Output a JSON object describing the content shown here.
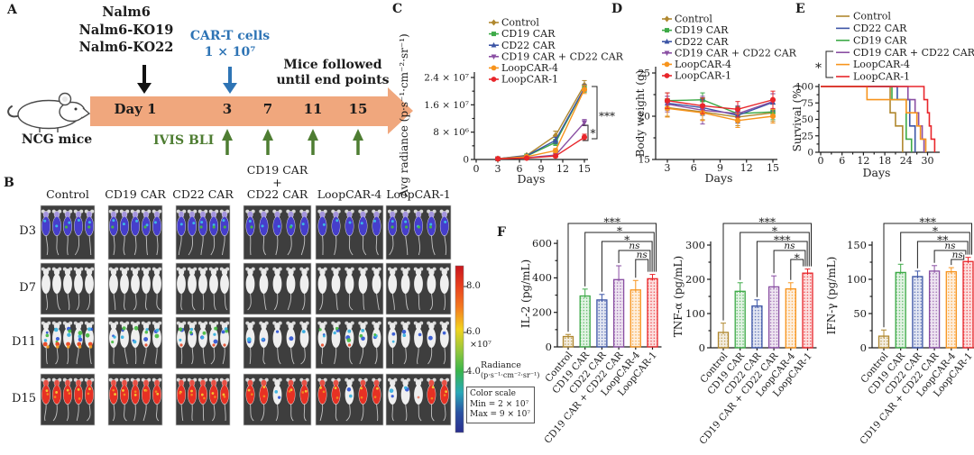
{
  "colors": {
    "control": "#b0882f",
    "cd19": "#3daa47",
    "cd22": "#3b54a5",
    "combo": "#8a4fa3",
    "loop4": "#f7941d",
    "loop1": "#e8262b",
    "timeline_arrow": "#f0a77d",
    "cart_text": "#2e74b5",
    "ivis_green": "#4e7d32",
    "mouse_panel_bg": "#3e3e3e"
  },
  "panelA": {
    "label": "A",
    "tumor_lines": [
      "Nalm6",
      "Nalm6-KO19",
      "Nalm6-KO22"
    ],
    "cart_line1": "CAR-T cells",
    "cart_line2": "1 × 10⁷",
    "followed_line1": "Mice followed",
    "followed_line2": "until end points",
    "day1": "Day 1",
    "day_ticks": [
      "3",
      "7",
      "11",
      "15"
    ],
    "ncg": "NCG mice",
    "ivis": "IVIS BLI"
  },
  "panelB": {
    "label": "B",
    "row_labels": [
      "D3",
      "D7",
      "D11",
      "D15"
    ],
    "col_headers": [
      [
        "Control"
      ],
      [
        "CD19 CAR"
      ],
      [
        "CD22 CAR"
      ],
      [
        "CD19 CAR",
        "+",
        "CD22 CAR"
      ],
      [
        "LoopCAR-4"
      ],
      [
        "LoopCAR-1"
      ]
    ],
    "mice_per_image": 5,
    "signal_grid": [
      [
        "blue",
        "blue",
        "blue",
        "blue",
        "blue",
        "blue"
      ],
      [
        "none",
        "none",
        "none",
        "none",
        "none",
        "none"
      ],
      [
        "spots-strong",
        "spots",
        "spots",
        "spots-light",
        "spots",
        "spots-light"
      ],
      [
        "max",
        "max",
        "max",
        "mixed-high",
        "mixed-high",
        "mixed-mid"
      ]
    ],
    "colorbar": {
      "tick_labels": [
        "8.0",
        "6.0",
        "4.0"
      ],
      "multiplier": "×10⁷",
      "radiance_line1": "Radiance",
      "radiance_line2": "(p·s⁻¹·cm⁻²·sr⁻¹)",
      "scale_lines": [
        "Color scale",
        "Min = 2 × 10⁷",
        "Max = 9 × 10⁷"
      ]
    }
  },
  "chart_data": [
    {
      "id": "C",
      "panel_label": "C",
      "type": "line",
      "ylabel": "Avg radiance (p·s⁻¹·cm⁻²·sr⁻¹)",
      "xlabel": "Days",
      "x": [
        3,
        7,
        11,
        15
      ],
      "xticks": [
        0,
        3,
        6,
        9,
        12,
        15
      ],
      "ytick_values": [
        0,
        8000000,
        16000000,
        24000000
      ],
      "ytick_labels": [
        "0",
        "8 × 10⁶",
        "1.6 × 10⁷",
        "2.4 × 10⁷"
      ],
      "ylim": [
        0,
        26000000
      ],
      "legend_position": "top-right",
      "series": [
        {
          "name": "Control",
          "color_key": "control",
          "marker": "diamond",
          "values": [
            200000,
            1200000,
            7000000,
            21800000
          ],
          "errors": [
            100000,
            400000,
            1300000,
            1300000
          ]
        },
        {
          "name": "CD19 CAR",
          "color_key": "cd19",
          "marker": "square",
          "values": [
            200000,
            1000000,
            5000000,
            20800000
          ],
          "errors": [
            100000,
            300000,
            900000,
            1100000
          ]
        },
        {
          "name": "CD22 CAR",
          "color_key": "cd22",
          "marker": "triangle-up",
          "values": [
            200000,
            1100000,
            5600000,
            20900000
          ],
          "errors": [
            100000,
            300000,
            900000,
            1000000
          ]
        },
        {
          "name": "CD19 CAR + CD22 CAR",
          "color_key": "combo",
          "marker": "triangle-down",
          "values": [
            200000,
            500000,
            1300000,
            10800000
          ],
          "errors": [
            80000,
            200000,
            400000,
            900000
          ]
        },
        {
          "name": "LoopCAR-4",
          "color_key": "loop4",
          "marker": "circle",
          "values": [
            200000,
            800000,
            2600000,
            20500000
          ],
          "errors": [
            100000,
            300000,
            600000,
            1200000
          ]
        },
        {
          "name": "LoopCAR-1",
          "color_key": "loop1",
          "marker": "circle",
          "values": [
            200000,
            400000,
            1000000,
            6500000
          ],
          "errors": [
            80000,
            200000,
            400000,
            900000
          ]
        }
      ],
      "significance": [
        {
          "label": "***",
          "span": "CAR groups cluster vs LoopCAR-1"
        },
        {
          "label": "*",
          "span": "CD19 CAR + CD22 CAR vs LoopCAR-1"
        }
      ]
    },
    {
      "id": "D",
      "panel_label": "D",
      "type": "line",
      "ylabel": "Body weight (g)",
      "xlabel": "Days",
      "x": [
        3,
        7,
        11,
        15
      ],
      "xticks": [
        3,
        6,
        9,
        12,
        15
      ],
      "ytick_values": [
        15,
        20,
        25
      ],
      "ylim": [
        15,
        25.8
      ],
      "series": [
        {
          "name": "Control",
          "color_key": "control",
          "marker": "diamond",
          "values": [
            21.0,
            20.5,
            19.9,
            20.4
          ],
          "errors": [
            1.0,
            0.9,
            1.0,
            1.0
          ]
        },
        {
          "name": "CD19 CAR",
          "color_key": "cd19",
          "marker": "square",
          "values": [
            21.8,
            21.9,
            20.3,
            20.5
          ],
          "errors": [
            0.9,
            0.8,
            0.8,
            0.9
          ]
        },
        {
          "name": "CD22 CAR",
          "color_key": "cd22",
          "marker": "triangle-up",
          "values": [
            21.5,
            21.0,
            20.1,
            21.6
          ],
          "errors": [
            0.8,
            0.9,
            0.9,
            1.0
          ]
        },
        {
          "name": "CD19 CAR + CD22 CAR",
          "color_key": "combo",
          "marker": "triangle-down",
          "values": [
            21.4,
            20.7,
            20.3,
            21.7
          ],
          "errors": [
            0.9,
            1.6,
            0.9,
            0.9
          ]
        },
        {
          "name": "LoopCAR-4",
          "color_key": "loop4",
          "marker": "circle",
          "values": [
            20.9,
            20.4,
            19.5,
            20.0
          ],
          "errors": [
            1.0,
            0.9,
            0.8,
            0.8
          ]
        },
        {
          "name": "LoopCAR-1",
          "color_key": "loop1",
          "marker": "circle",
          "values": [
            21.8,
            21.2,
            20.8,
            21.9
          ],
          "errors": [
            0.9,
            0.9,
            0.9,
            1.0
          ]
        }
      ]
    },
    {
      "id": "E",
      "panel_label": "E",
      "type": "step",
      "ylabel": "Survival (%)",
      "xlabel": "Days",
      "xticks": [
        0,
        6,
        12,
        18,
        24,
        30
      ],
      "xlim": [
        0,
        33
      ],
      "ytick_values": [
        0,
        25,
        50,
        75,
        100
      ],
      "ylim": [
        0,
        100
      ],
      "significance": [
        {
          "label": "*",
          "span": "legend bracket: CD19 CAR + CD22 CAR through LoopCAR-1"
        }
      ],
      "series": [
        {
          "name": "Control",
          "color_key": "control",
          "points": [
            [
              0,
              100
            ],
            [
              19.5,
              100
            ],
            [
              19.5,
              60
            ],
            [
              21,
              60
            ],
            [
              21,
              40
            ],
            [
              23,
              40
            ],
            [
              23,
              0
            ]
          ]
        },
        {
          "name": "CD22 CAR",
          "color_key": "cd22",
          "points": [
            [
              0,
              100
            ],
            [
              21.5,
              100
            ],
            [
              21.5,
              80
            ],
            [
              25,
              80
            ],
            [
              25,
              40
            ],
            [
              26.5,
              40
            ],
            [
              26.5,
              0
            ]
          ]
        },
        {
          "name": "CD19 CAR",
          "color_key": "cd19",
          "points": [
            [
              0,
              100
            ],
            [
              20,
              100
            ],
            [
              20,
              80
            ],
            [
              24,
              80
            ],
            [
              24,
              20
            ],
            [
              25.5,
              20
            ],
            [
              25.5,
              0
            ]
          ]
        },
        {
          "name": "CD19 CAR + CD22 CAR",
          "color_key": "combo",
          "points": [
            [
              0,
              100
            ],
            [
              24.5,
              100
            ],
            [
              24.5,
              80
            ],
            [
              26.5,
              80
            ],
            [
              26.5,
              60
            ],
            [
              27.5,
              60
            ],
            [
              27.5,
              40
            ],
            [
              28.5,
              40
            ],
            [
              28.5,
              20
            ],
            [
              29,
              20
            ],
            [
              29,
              0
            ]
          ]
        },
        {
          "name": "LoopCAR-4",
          "color_key": "loop4",
          "points": [
            [
              0,
              100
            ],
            [
              13,
              100
            ],
            [
              13,
              80
            ],
            [
              24,
              80
            ],
            [
              24,
              60
            ],
            [
              27,
              60
            ],
            [
              27,
              40
            ],
            [
              28,
              40
            ],
            [
              28,
              20
            ],
            [
              29.5,
              20
            ],
            [
              29.5,
              0
            ]
          ]
        },
        {
          "name": "LoopCAR-1",
          "color_key": "loop1",
          "points": [
            [
              0,
              100
            ],
            [
              29,
              100
            ],
            [
              29,
              80
            ],
            [
              30,
              80
            ],
            [
              30,
              60
            ],
            [
              30.5,
              60
            ],
            [
              30.5,
              40
            ],
            [
              31,
              40
            ],
            [
              31,
              20
            ],
            [
              32,
              20
            ],
            [
              32,
              0
            ]
          ]
        }
      ]
    },
    {
      "id": "F1",
      "panel_label": "F",
      "type": "bar",
      "ylabel": "IL-2 (pg/mL)",
      "categories": [
        "Control",
        "CD19 CAR",
        "CD22 CAR",
        "CD19 CAR + CD22 CAR",
        "LoopCAR-4",
        "LoopCAR-1"
      ],
      "color_keys": [
        "control",
        "cd19",
        "cd22",
        "combo",
        "loop4",
        "loop1"
      ],
      "values": [
        60,
        295,
        272,
        390,
        330,
        395
      ],
      "errors": [
        12,
        40,
        32,
        80,
        55,
        25
      ],
      "ytick_values": [
        0,
        200,
        400,
        600
      ],
      "ylim": [
        0,
        600
      ],
      "significance": [
        {
          "from": 0,
          "to": 5,
          "label": "***"
        },
        {
          "from": 1,
          "to": 5,
          "label": "*"
        },
        {
          "from": 2,
          "to": 5,
          "label": "*"
        },
        {
          "from": 3,
          "to": 5,
          "label": "ns"
        },
        {
          "from": 4,
          "to": 5,
          "label": "ns"
        }
      ]
    },
    {
      "id": "F2",
      "type": "bar",
      "ylabel": "TNF-α (pg/mL)",
      "categories": [
        "Control",
        "CD19 CAR",
        "CD22 CAR",
        "CD19 CAR + CD22 CAR",
        "LoopCAR-4",
        "LoopCAR-1"
      ],
      "color_keys": [
        "control",
        "cd19",
        "cd22",
        "combo",
        "loop4",
        "loop1"
      ],
      "values": [
        45,
        165,
        122,
        178,
        172,
        218
      ],
      "errors": [
        27,
        25,
        18,
        32,
        18,
        12
      ],
      "ytick_values": [
        0,
        100,
        200,
        300
      ],
      "ylim": [
        0,
        300
      ],
      "significance": [
        {
          "from": 0,
          "to": 5,
          "label": "***"
        },
        {
          "from": 1,
          "to": 5,
          "label": "*"
        },
        {
          "from": 2,
          "to": 5,
          "label": "***"
        },
        {
          "from": 3,
          "to": 5,
          "label": "ns"
        },
        {
          "from": 4,
          "to": 5,
          "label": "*"
        }
      ]
    },
    {
      "id": "F3",
      "type": "bar",
      "ylabel": "IFN-γ (pg/mL)",
      "categories": [
        "Control",
        "CD19 CAR",
        "CD22 CAR",
        "CD19 CAR + CD22 CAR",
        "LoopCAR-4",
        "LoopCAR-1"
      ],
      "color_keys": [
        "control",
        "cd19",
        "cd22",
        "combo",
        "loop4",
        "loop1"
      ],
      "values": [
        17,
        110,
        104,
        112,
        111,
        126
      ],
      "errors": [
        9,
        12,
        8,
        8,
        6,
        6
      ],
      "ytick_values": [
        0,
        50,
        100,
        150
      ],
      "ylim": [
        0,
        150
      ],
      "significance": [
        {
          "from": 0,
          "to": 5,
          "label": "***"
        },
        {
          "from": 1,
          "to": 5,
          "label": "*"
        },
        {
          "from": 2,
          "to": 5,
          "label": "**"
        },
        {
          "from": 3,
          "to": 5,
          "label": "ns"
        },
        {
          "from": 4,
          "to": 5,
          "label": "ns"
        }
      ]
    }
  ]
}
